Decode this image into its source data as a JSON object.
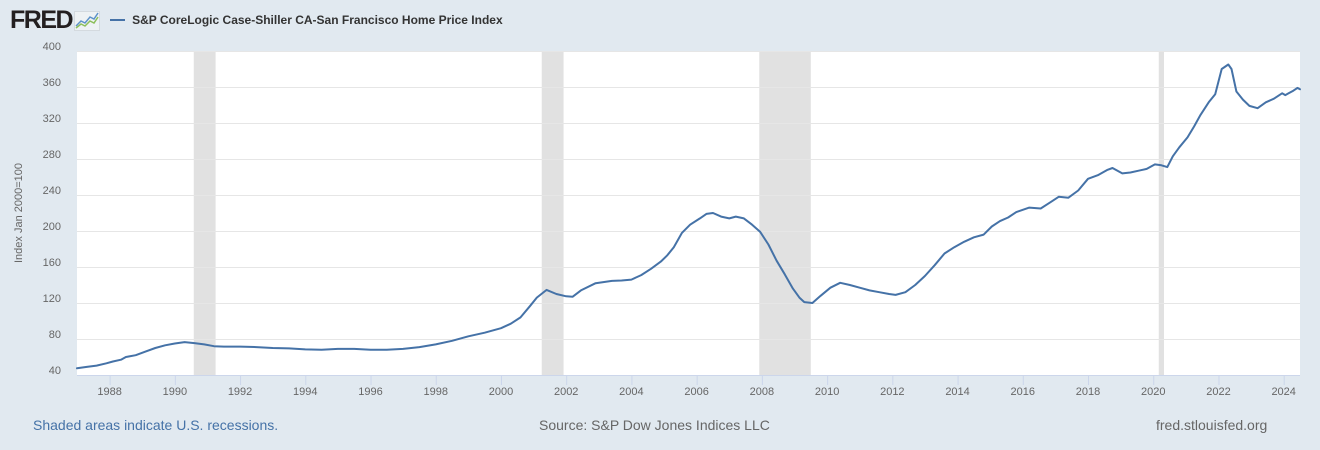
{
  "header": {
    "logo_text": "FRED",
    "logo_icon": "fred-line-chart-icon",
    "legend_label": "S&P CoreLogic Case-Shiller CA-San Francisco Home Price Index"
  },
  "colors": {
    "background": "#e1e9f0",
    "plot_background": "#ffffff",
    "series_line": "#4572a7",
    "recession_shade": "#e1e1e1",
    "gridline": "#e6e6e6",
    "axis_line": "#ccd6eb",
    "footer_link": "#4572a7",
    "footer_text": "#666666"
  },
  "footer": {
    "recession_note": "Shaded areas indicate U.S. recessions.",
    "source": "Source: S&P Dow Jones Indices LLC",
    "site": "fred.stlouisfed.org"
  },
  "chart_data": {
    "type": "line",
    "title": "S&P CoreLogic Case-Shiller CA-San Francisco Home Price Index",
    "xlabel": "",
    "ylabel": "Index Jan 2000=100",
    "xlim": [
      1987.0,
      2024.5
    ],
    "ylim": [
      40,
      400
    ],
    "grid": true,
    "legend_position": "top-left",
    "x_ticks": [
      1988,
      1990,
      1992,
      1994,
      1996,
      1998,
      2000,
      2002,
      2004,
      2006,
      2008,
      2010,
      2012,
      2014,
      2016,
      2018,
      2020,
      2022,
      2024
    ],
    "x_tick_labels": [
      "1988",
      "1990",
      "1992",
      "1994",
      "1996",
      "1998",
      "2000",
      "2002",
      "2004",
      "2006",
      "2008",
      "2010",
      "2012",
      "2014",
      "2016",
      "2018",
      "2020",
      "2022",
      "2024"
    ],
    "y_ticks": [
      40,
      80,
      120,
      160,
      200,
      240,
      280,
      320,
      360,
      400
    ],
    "y_tick_labels": [
      "40",
      "80",
      "120",
      "160",
      "200",
      "240",
      "280",
      "320",
      "360",
      "400"
    ],
    "recessions": [
      [
        1990.58,
        1991.25
      ],
      [
        2001.25,
        2001.92
      ],
      [
        2007.92,
        2009.5
      ],
      [
        2020.17,
        2020.33
      ]
    ],
    "series": [
      {
        "name": "S&P CoreLogic Case-Shiller CA-San Francisco Home Price Index",
        "x": [
          1987.0,
          1987.3,
          1987.6,
          1987.9,
          1988.1,
          1988.35,
          1988.5,
          1988.8,
          1989.1,
          1989.4,
          1989.7,
          1990.0,
          1990.3,
          1990.6,
          1990.9,
          1991.2,
          1991.5,
          1992.0,
          1992.5,
          1993.0,
          1993.5,
          1994.0,
          1994.5,
          1995.0,
          1995.5,
          1996.0,
          1996.5,
          1997.0,
          1997.5,
          1998.0,
          1998.5,
          1999.0,
          1999.5,
          2000.0,
          2000.3,
          2000.6,
          2000.9,
          2001.1,
          2001.4,
          2001.7,
          2002.0,
          2002.2,
          2002.45,
          2002.9,
          2003.4,
          2003.7,
          2004.0,
          2004.3,
          2004.6,
          2004.9,
          2005.1,
          2005.3,
          2005.55,
          2005.8,
          2006.1,
          2006.3,
          2006.5,
          2006.75,
          2007.0,
          2007.2,
          2007.45,
          2007.7,
          2007.95,
          2008.2,
          2008.45,
          2008.7,
          2008.95,
          2009.15,
          2009.3,
          2009.55,
          2009.8,
          2010.1,
          2010.4,
          2010.7,
          2011.0,
          2011.3,
          2011.6,
          2011.9,
          2012.1,
          2012.4,
          2012.7,
          2013.0,
          2013.3,
          2013.6,
          2013.9,
          2014.2,
          2014.5,
          2014.8,
          2015.05,
          2015.3,
          2015.55,
          2015.8,
          2016.2,
          2016.55,
          2016.85,
          2017.1,
          2017.4,
          2017.7,
          2018.0,
          2018.3,
          2018.6,
          2018.75,
          2019.05,
          2019.3,
          2019.55,
          2019.8,
          2020.05,
          2020.25,
          2020.43,
          2020.6,
          2020.8,
          2021.05,
          2021.25,
          2021.45,
          2021.7,
          2021.9,
          2022.1,
          2022.3,
          2022.4,
          2022.55,
          2022.75,
          2022.95,
          2023.2,
          2023.45,
          2023.7,
          2023.95,
          2024.05,
          2024.15,
          2024.3,
          2024.42,
          2024.5
        ],
        "values": [
          47.5,
          49,
          50.5,
          53,
          55,
          57,
          60,
          62,
          66,
          70,
          73,
          75,
          76.5,
          75.5,
          74,
          72,
          71.5,
          71.5,
          71,
          70,
          69.5,
          68.5,
          68,
          69,
          69,
          68,
          68,
          69,
          71,
          74,
          78,
          83,
          87,
          92,
          97,
          104,
          117,
          126,
          134.5,
          130,
          127.5,
          127,
          134,
          142,
          144.5,
          145,
          146,
          151,
          158,
          166,
          173,
          182,
          198,
          207,
          214,
          219,
          220,
          216,
          214,
          216,
          214,
          207,
          199,
          185,
          167,
          152,
          136,
          126,
          121,
          120,
          128,
          137,
          142.5,
          140,
          137,
          134,
          132,
          130,
          129,
          132,
          140,
          150,
          162,
          175,
          182,
          188,
          193,
          196,
          205,
          211,
          215,
          221,
          226,
          225,
          232,
          238,
          237,
          245,
          258,
          262,
          268,
          270,
          264,
          265,
          267,
          269,
          274,
          273,
          271,
          283,
          293,
          304,
          316,
          329,
          343,
          352,
          380,
          385,
          380,
          355,
          346,
          339,
          336.5,
          343,
          347,
          353,
          351,
          353,
          356,
          359,
          357.5
        ]
      }
    ]
  }
}
